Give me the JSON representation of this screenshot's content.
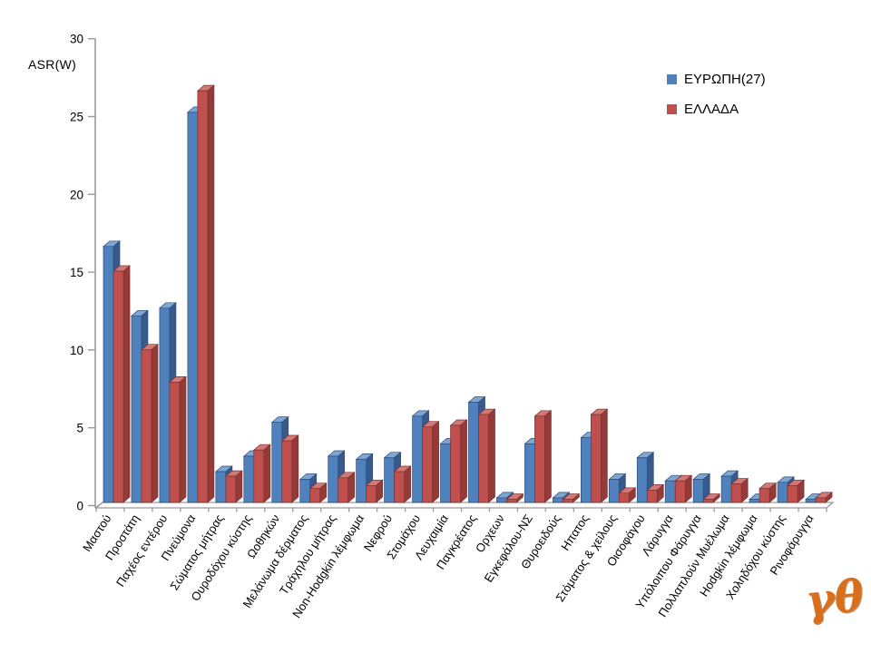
{
  "chart_data": {
    "type": "bar",
    "title": "",
    "ylabel": "ASR(W)",
    "xlabel": "",
    "ylim": [
      0,
      30
    ],
    "yticks": [
      0,
      5,
      10,
      15,
      20,
      25,
      30
    ],
    "grid": false,
    "legend_position": "top-right",
    "style": "3d-clustered-column",
    "categories": [
      "Μαστού",
      "Προστάτη",
      "Παχέος εντέρου",
      "Πνεύμονα",
      "Σώματος μήτρας",
      "Ουροδόχου κύστης",
      "Ωοθηκών",
      "Μελάνωμα δέρματος",
      "Τράχηλου μήτρας",
      "Non-Hodgkin λέμφωμα",
      "Νεφρού",
      "Στομάχου",
      "Λευχαιμία",
      "Παγκρέατος",
      "Ορχεων",
      "Εγκεφάλου-ΝΣ",
      "Θυροειδούς",
      "Ηπατος",
      "Στόματος & χείλους",
      "Οισοφάγου",
      "Λάρυγγα",
      "Υπόλοιπου Φάρυγγα",
      "Πολλαπλούν Μυέλωμα",
      "Hodgkin λέμφωμα",
      "Χοληδόχου κύστης",
      "Ρινοφάρυγγα"
    ],
    "series": [
      {
        "name": "ΕΥΡΩΠΗ(27)",
        "color": "#4F81BD",
        "color_top": "#7FA5D2",
        "color_side": "#38598C",
        "color_edge": "#2E4D79",
        "values": [
          16.6,
          12.1,
          12.6,
          25.3,
          2.0,
          3.0,
          5.2,
          1.5,
          3.0,
          2.8,
          2.9,
          5.6,
          3.8,
          6.5,
          0.3,
          3.8,
          0.3,
          4.2,
          1.5,
          2.9,
          1.4,
          1.5,
          1.7,
          0.2,
          1.3,
          0.2
        ]
      },
      {
        "name": "ΕΛΛΑΔΑ",
        "color": "#C0504D",
        "color_top": "#D07976",
        "color_side": "#943B39",
        "color_edge": "#7C302E",
        "values": [
          15.0,
          9.9,
          7.8,
          26.7,
          1.7,
          3.4,
          4.0,
          0.9,
          1.6,
          1.1,
          2.0,
          4.9,
          5.0,
          5.7,
          0.2,
          5.6,
          0.2,
          5.7,
          0.6,
          0.8,
          1.4,
          0.2,
          1.2,
          0.9,
          1.1,
          0.3
        ]
      }
    ]
  },
  "signature": {
    "text": "γθ",
    "color": "#D96F1A"
  },
  "colors": {
    "axis": "#9A9A9A",
    "text": "#000000",
    "background": "#FFFFFF"
  }
}
